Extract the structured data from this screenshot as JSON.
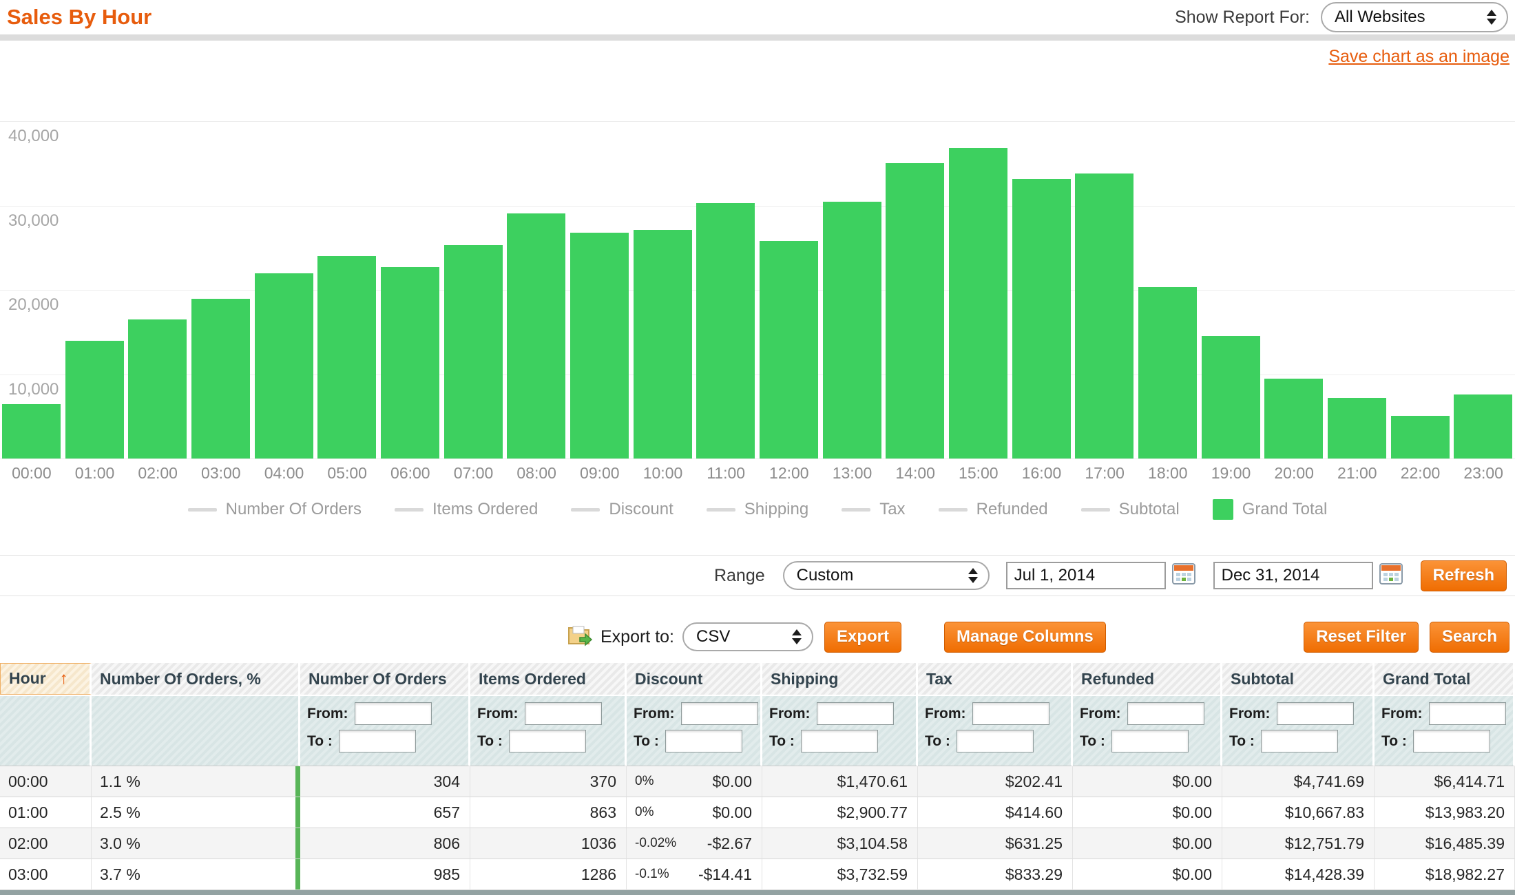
{
  "header": {
    "title": "Sales By Hour",
    "show_report_for_label": "Show Report For:",
    "website_selector_value": "All Websites"
  },
  "chart": {
    "save_link_label": "Save chart as an image",
    "legend": [
      {
        "label": "Number Of Orders",
        "swatch": "line"
      },
      {
        "label": "Items Ordered",
        "swatch": "line"
      },
      {
        "label": "Discount",
        "swatch": "line"
      },
      {
        "label": "Shipping",
        "swatch": "line"
      },
      {
        "label": "Tax",
        "swatch": "line"
      },
      {
        "label": "Refunded",
        "swatch": "line"
      },
      {
        "label": "Subtotal",
        "swatch": "line"
      },
      {
        "label": "Grand Total",
        "swatch": "box"
      }
    ]
  },
  "chart_data": {
    "type": "bar",
    "series_name": "Grand Total",
    "categories": [
      "00:00",
      "01:00",
      "02:00",
      "03:00",
      "04:00",
      "05:00",
      "06:00",
      "07:00",
      "08:00",
      "09:00",
      "10:00",
      "11:00",
      "12:00",
      "13:00",
      "14:00",
      "15:00",
      "16:00",
      "17:00",
      "18:00",
      "19:00",
      "20:00",
      "21:00",
      "22:00",
      "23:00"
    ],
    "values": [
      6414.71,
      13983.2,
      16485.39,
      18982.27,
      22000,
      24000,
      22700,
      25300,
      29100,
      26800,
      27100,
      30300,
      25800,
      30500,
      35000,
      36800,
      33200,
      33800,
      20300,
      14500,
      9500,
      7200,
      5100,
      7600
    ],
    "ylim": [
      0,
      45000
    ],
    "yticks": [
      {
        "value": 40000,
        "label": "40,000"
      },
      {
        "value": 30000,
        "label": "30,000"
      },
      {
        "value": 20000,
        "label": "20,000"
      },
      {
        "value": 10000,
        "label": "10,000"
      },
      {
        "value": 0,
        "label": ""
      }
    ],
    "bar_color": "#3dd05f",
    "grid": true,
    "legend_position": "bottom"
  },
  "range_bar": {
    "label": "Range",
    "range_value": "Custom",
    "from_date": "Jul 1, 2014",
    "to_date": "Dec 31, 2014",
    "refresh_label": "Refresh"
  },
  "export_bar": {
    "export_to_label": "Export to:",
    "format_value": "CSV",
    "export_label": "Export",
    "manage_columns_label": "Manage Columns",
    "reset_filter_label": "Reset Filter",
    "search_label": "Search"
  },
  "table": {
    "sort_icon": "up-arrow",
    "sort_glyph": "↑",
    "filter": {
      "from_label": "From:",
      "to_label": "To :"
    },
    "columns": [
      {
        "key": "hour",
        "label": "Hour",
        "sorted": true,
        "filter": false,
        "align": "left"
      },
      {
        "key": "orders_pct",
        "label": "Number Of Orders, %",
        "sorted": false,
        "filter": false,
        "align": "left"
      },
      {
        "key": "orders",
        "label": "Number Of Orders",
        "sorted": false,
        "filter": true,
        "align": "right"
      },
      {
        "key": "items",
        "label": "Items Ordered",
        "sorted": false,
        "filter": true,
        "align": "right"
      },
      {
        "key": "discount",
        "label": "Discount",
        "sorted": false,
        "filter": true,
        "align": "split"
      },
      {
        "key": "shipping",
        "label": "Shipping",
        "sorted": false,
        "filter": true,
        "align": "right"
      },
      {
        "key": "tax",
        "label": "Tax",
        "sorted": false,
        "filter": true,
        "align": "right"
      },
      {
        "key": "refunded",
        "label": "Refunded",
        "sorted": false,
        "filter": true,
        "align": "right"
      },
      {
        "key": "subtotal",
        "label": "Subtotal",
        "sorted": false,
        "filter": true,
        "align": "right"
      },
      {
        "key": "grand_total",
        "label": "Grand Total",
        "sorted": false,
        "filter": true,
        "align": "right"
      }
    ],
    "rows": [
      {
        "hour": "00:00",
        "orders_pct": "1.1 %",
        "orders": "304",
        "items": "370",
        "discount_pct": "0%",
        "discount": "$0.00",
        "shipping": "$1,470.61",
        "tax": "$202.41",
        "refunded": "$0.00",
        "subtotal": "$4,741.69",
        "grand_total": "$6,414.71"
      },
      {
        "hour": "01:00",
        "orders_pct": "2.5 %",
        "orders": "657",
        "items": "863",
        "discount_pct": "0%",
        "discount": "$0.00",
        "shipping": "$2,900.77",
        "tax": "$414.60",
        "refunded": "$0.00",
        "subtotal": "$10,667.83",
        "grand_total": "$13,983.20"
      },
      {
        "hour": "02:00",
        "orders_pct": "3.0 %",
        "orders": "806",
        "items": "1036",
        "discount_pct": "-0.02%",
        "discount": "-$2.67",
        "shipping": "$3,104.58",
        "tax": "$631.25",
        "refunded": "$0.00",
        "subtotal": "$12,751.79",
        "grand_total": "$16,485.39"
      },
      {
        "hour": "03:00",
        "orders_pct": "3.7 %",
        "orders": "985",
        "items": "1286",
        "discount_pct": "-0.1%",
        "discount": "-$14.41",
        "shipping": "$3,732.59",
        "tax": "$833.29",
        "refunded": "$0.00",
        "subtotal": "$14,428.39",
        "grand_total": "$18,982.27"
      }
    ]
  },
  "colors": {
    "accent_orange": "#e75c0d",
    "bar_green": "#3dd05f",
    "percent_bar_green": "#58b558",
    "button_orange": "#ef6d02"
  }
}
